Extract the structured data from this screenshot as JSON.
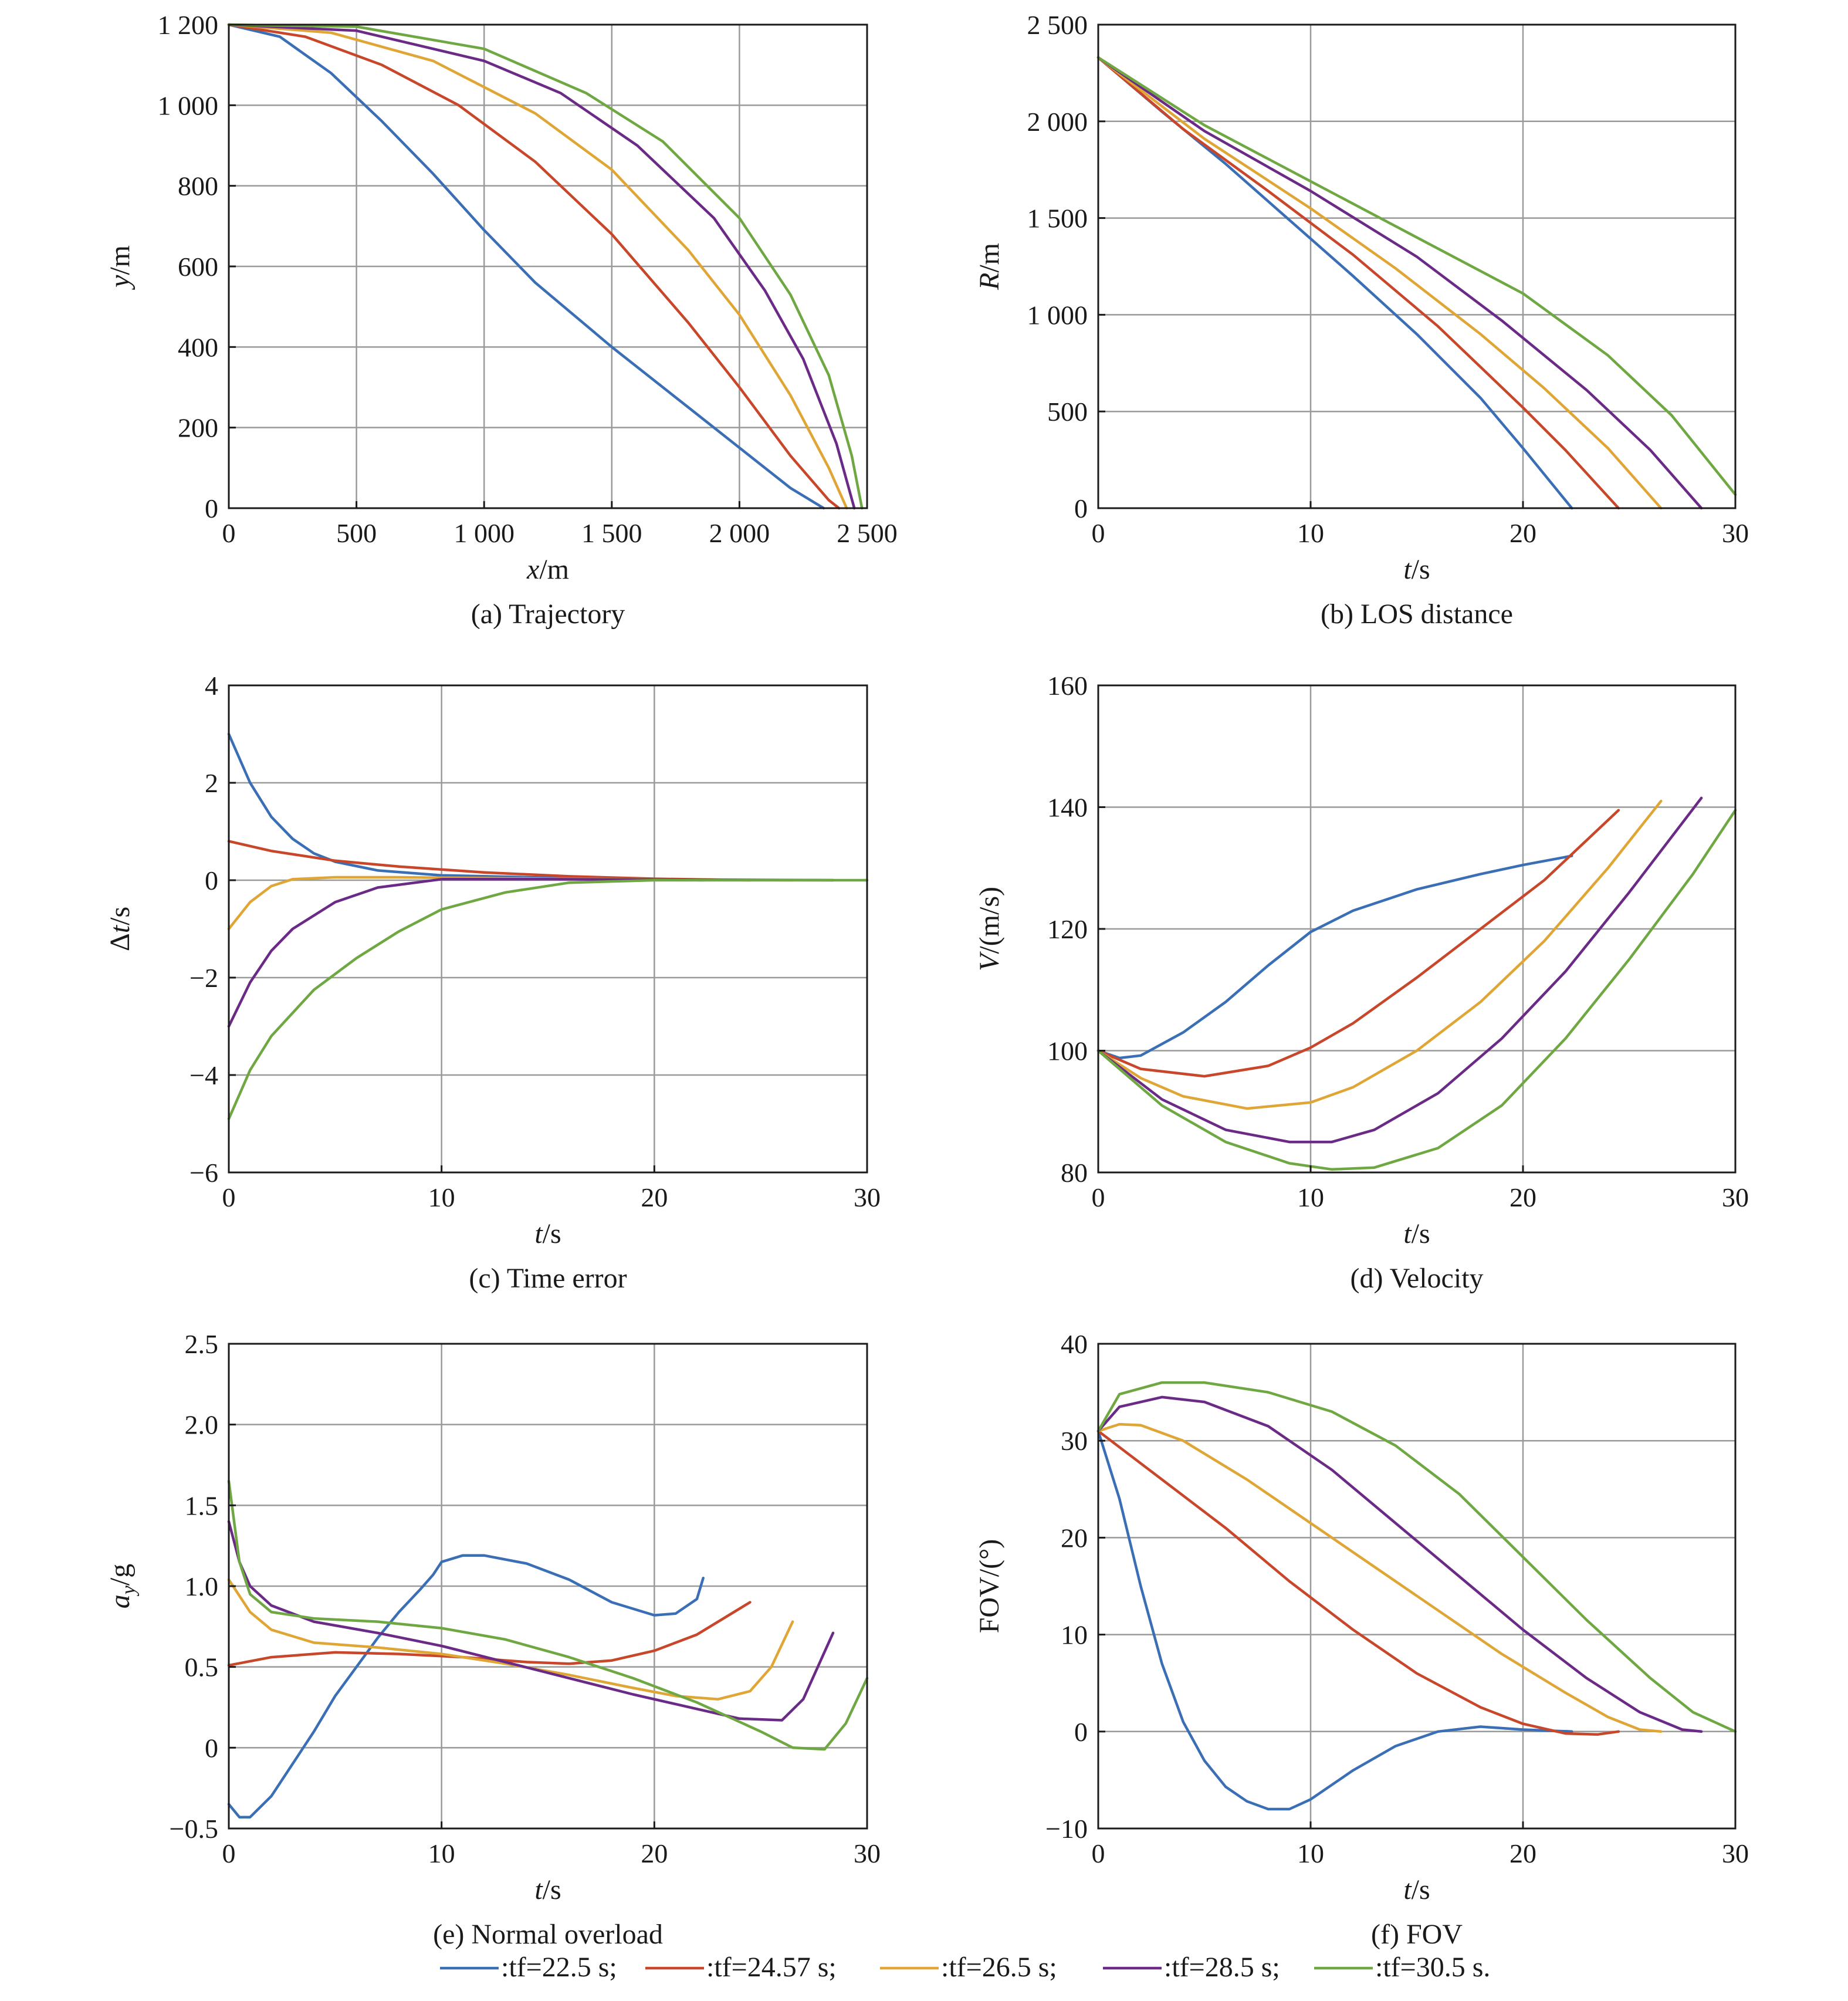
{
  "legend": [
    {
      "label": ":tf=22.5 s;",
      "color": "#3a6eb5"
    },
    {
      "label": ":tf=24.57 s;",
      "color": "#c8472b"
    },
    {
      "label": ":tf=26.5 s;",
      "color": "#dfa635"
    },
    {
      "label": ":tf=28.5 s;",
      "color": "#6a2a86"
    },
    {
      "label": ":tf=30.5 s.",
      "color": "#6fa843"
    }
  ],
  "chart_data": [
    {
      "id": "a",
      "type": "line",
      "caption": "(a) Trajectory",
      "xlabel": {
        "italic": "x",
        "rest": "/m"
      },
      "ylabel": {
        "italic": "y",
        "rest": "/m"
      },
      "xlim": [
        0,
        2500
      ],
      "ylim": [
        0,
        1200
      ],
      "xticks": [
        0,
        500,
        1000,
        1500,
        2000,
        2500
      ],
      "xtick_labels": [
        "0",
        "500",
        "1 000",
        "1 500",
        "2 000",
        "2 500"
      ],
      "yticks": [
        0,
        200,
        400,
        600,
        800,
        1000,
        1200
      ],
      "ytick_labels": [
        "0",
        "200",
        "400",
        "600",
        "800",
        "1 000",
        "1 200"
      ],
      "grid": true,
      "series": [
        {
          "x": [
            0,
            200,
            400,
            600,
            800,
            1000,
            1200,
            1500,
            1800,
            2000,
            2200,
            2330
          ],
          "y": [
            1200,
            1170,
            1080,
            960,
            830,
            690,
            560,
            400,
            250,
            150,
            50,
            0
          ]
        },
        {
          "x": [
            0,
            300,
            600,
            900,
            1200,
            1500,
            1800,
            2000,
            2200,
            2350,
            2390
          ],
          "y": [
            1200,
            1170,
            1100,
            1000,
            860,
            680,
            460,
            300,
            130,
            20,
            0
          ]
        },
        {
          "x": [
            0,
            400,
            800,
            1200,
            1500,
            1800,
            2000,
            2200,
            2350,
            2420
          ],
          "y": [
            1200,
            1180,
            1110,
            980,
            840,
            640,
            480,
            280,
            100,
            0
          ]
        },
        {
          "x": [
            0,
            500,
            1000,
            1300,
            1600,
            1900,
            2100,
            2250,
            2380,
            2450
          ],
          "y": [
            1200,
            1185,
            1110,
            1030,
            900,
            720,
            540,
            370,
            160,
            0
          ]
        },
        {
          "x": [
            0,
            500,
            1000,
            1400,
            1700,
            2000,
            2200,
            2350,
            2440,
            2480
          ],
          "y": [
            1200,
            1195,
            1140,
            1030,
            910,
            720,
            530,
            330,
            130,
            0
          ]
        }
      ]
    },
    {
      "id": "b",
      "type": "line",
      "caption": "(b) LOS distance",
      "xlabel": {
        "italic": "t",
        "rest": "/s"
      },
      "ylabel": {
        "italic": "R",
        "rest": "/m"
      },
      "xlim": [
        0,
        30
      ],
      "ylim": [
        0,
        2500
      ],
      "xticks": [
        0,
        10,
        20,
        30
      ],
      "xtick_labels": [
        "0",
        "10",
        "20",
        "30"
      ],
      "yticks": [
        0,
        500,
        1000,
        1500,
        2000,
        2500
      ],
      "ytick_labels": [
        "0",
        "500",
        "1 000",
        "1 500",
        "2 000",
        "2 500"
      ],
      "grid": true,
      "series": [
        {
          "x": [
            0,
            3,
            6,
            9,
            12,
            15,
            18,
            20,
            22.3
          ],
          "y": [
            2330,
            2050,
            1780,
            1490,
            1200,
            900,
            570,
            310,
            0
          ]
        },
        {
          "x": [
            0,
            4,
            8,
            12,
            16,
            20,
            22,
            24.5
          ],
          "y": [
            2330,
            1960,
            1640,
            1310,
            940,
            520,
            300,
            0
          ]
        },
        {
          "x": [
            0,
            5,
            10,
            14,
            18,
            21,
            24,
            26.5
          ],
          "y": [
            2330,
            1910,
            1550,
            1240,
            900,
            620,
            310,
            0
          ]
        },
        {
          "x": [
            0,
            5,
            10,
            15,
            19,
            23,
            26,
            28.4
          ],
          "y": [
            2330,
            1950,
            1640,
            1300,
            970,
            610,
            300,
            0
          ]
        },
        {
          "x": [
            0,
            5,
            10,
            15,
            20,
            24,
            27,
            30
          ],
          "y": [
            2330,
            1980,
            1690,
            1400,
            1110,
            790,
            480,
            70
          ]
        }
      ]
    },
    {
      "id": "c",
      "type": "line",
      "caption": "(c) Time error",
      "xlabel": {
        "italic": "t",
        "rest": "/s"
      },
      "ylabel": {
        "prefix": "Δ",
        "italic": "t",
        "rest": "/s"
      },
      "xlim": [
        0,
        30
      ],
      "ylim": [
        -6,
        4
      ],
      "xticks": [
        0,
        10,
        20,
        30
      ],
      "xtick_labels": [
        "0",
        "10",
        "20",
        "30"
      ],
      "yticks": [
        -6,
        -4,
        -2,
        0,
        2,
        4
      ],
      "ytick_labels": [
        "−6",
        "−4",
        "−2",
        "0",
        "2",
        "4"
      ],
      "grid": true,
      "series": [
        {
          "x": [
            0,
            1,
            2,
            3,
            4,
            5,
            7,
            10,
            15,
            20,
            22.3
          ],
          "y": [
            3.0,
            2.0,
            1.3,
            0.85,
            0.55,
            0.38,
            0.2,
            0.1,
            0.05,
            0.02,
            0.0
          ]
        },
        {
          "x": [
            0,
            2,
            5,
            8,
            12,
            16,
            20,
            24.5
          ],
          "y": [
            0.8,
            0.6,
            0.4,
            0.28,
            0.16,
            0.08,
            0.03,
            0.0
          ]
        },
        {
          "x": [
            0,
            1,
            2,
            3,
            5,
            8,
            15,
            26.5
          ],
          "y": [
            -1.0,
            -0.45,
            -0.12,
            0.02,
            0.06,
            0.06,
            0.03,
            0.0
          ]
        },
        {
          "x": [
            0,
            1,
            2,
            3,
            5,
            7,
            10,
            15,
            28.4
          ],
          "y": [
            -3.0,
            -2.1,
            -1.45,
            -1.0,
            -0.45,
            -0.15,
            0.02,
            0.02,
            0.0
          ]
        },
        {
          "x": [
            0,
            1,
            2,
            4,
            6,
            8,
            10,
            13,
            16,
            20,
            30
          ],
          "y": [
            -4.9,
            -3.9,
            -3.2,
            -2.25,
            -1.6,
            -1.05,
            -0.6,
            -0.25,
            -0.05,
            0.0,
            0.0
          ]
        }
      ]
    },
    {
      "id": "d",
      "type": "line",
      "caption": "(d) Velocity",
      "xlabel": {
        "italic": "t",
        "rest": "/s"
      },
      "ylabel": {
        "italic": "V",
        "rest": "/(m/s)"
      },
      "xlim": [
        0,
        30
      ],
      "ylim": [
        80,
        160
      ],
      "xticks": [
        0,
        10,
        20,
        30
      ],
      "xtick_labels": [
        "0",
        "10",
        "20",
        "30"
      ],
      "yticks": [
        80,
        100,
        120,
        140,
        160
      ],
      "ytick_labels": [
        "80",
        "100",
        "120",
        "140",
        "160"
      ],
      "grid": true,
      "series": [
        {
          "x": [
            0,
            1,
            2,
            4,
            6,
            8,
            10,
            12,
            15,
            18,
            20,
            22.3
          ],
          "y": [
            100,
            98.8,
            99.2,
            103,
            108,
            114,
            119.5,
            123,
            126.5,
            129,
            130.5,
            132
          ]
        },
        {
          "x": [
            0,
            2,
            5,
            8,
            10,
            12,
            15,
            18,
            21,
            24.5
          ],
          "y": [
            100,
            97,
            95.8,
            97.5,
            100.5,
            104.5,
            112,
            120,
            128,
            139.5
          ]
        },
        {
          "x": [
            0,
            2,
            4,
            7,
            10,
            12,
            15,
            18,
            21,
            24,
            26.5
          ],
          "y": [
            100,
            95.5,
            92.5,
            90.5,
            91.5,
            94,
            100,
            108,
            118,
            130,
            141
          ]
        },
        {
          "x": [
            0,
            3,
            6,
            9,
            11,
            13,
            16,
            19,
            22,
            25,
            28.4
          ],
          "y": [
            100,
            92,
            87,
            85,
            85,
            87,
            93,
            102,
            113,
            126,
            141.5
          ]
        },
        {
          "x": [
            0,
            3,
            6,
            9,
            11,
            13,
            16,
            19,
            22,
            25,
            28,
            30
          ],
          "y": [
            100,
            91,
            85,
            81.5,
            80.5,
            80.8,
            84,
            91,
            102,
            115,
            129,
            139.5
          ]
        }
      ]
    },
    {
      "id": "e",
      "type": "line",
      "caption": "(e) Normal overload",
      "xlabel": {
        "italic": "t",
        "rest": "/s"
      },
      "ylabel": {
        "italic": "a",
        "sub": "y",
        "rest": "/g"
      },
      "xlim": [
        0,
        30
      ],
      "ylim": [
        -0.5,
        2.5
      ],
      "xticks": [
        0,
        10,
        20,
        30
      ],
      "xtick_labels": [
        "0",
        "10",
        "20",
        "30"
      ],
      "yticks": [
        -0.5,
        0,
        0.5,
        1.0,
        1.5,
        2.0,
        2.5
      ],
      "ytick_labels": [
        "−0.5",
        "0",
        "0.5",
        "1.0",
        "1.5",
        "2.0",
        "2.5"
      ],
      "grid": true,
      "series": [
        {
          "x": [
            0,
            0.5,
            1,
            2,
            3,
            4,
            5,
            6,
            7,
            8,
            9,
            9.6,
            10,
            11,
            12,
            14,
            16,
            18,
            20,
            21,
            22,
            22.3
          ],
          "y": [
            -0.35,
            -0.43,
            -0.43,
            -0.3,
            -0.1,
            0.1,
            0.32,
            0.5,
            0.68,
            0.84,
            0.98,
            1.07,
            1.15,
            1.19,
            1.19,
            1.14,
            1.04,
            0.9,
            0.82,
            0.83,
            0.92,
            1.05
          ]
        },
        {
          "x": [
            0,
            2,
            5,
            8,
            11,
            14,
            16,
            18,
            20,
            22,
            24.5
          ],
          "y": [
            0.51,
            0.56,
            0.59,
            0.58,
            0.56,
            0.53,
            0.52,
            0.54,
            0.6,
            0.7,
            0.9
          ]
        },
        {
          "x": [
            0,
            1,
            2,
            4,
            7,
            10,
            13,
            16,
            19,
            21,
            23,
            24.5,
            25.5,
            26.5
          ],
          "y": [
            1.04,
            0.84,
            0.73,
            0.65,
            0.62,
            0.58,
            0.52,
            0.45,
            0.37,
            0.32,
            0.3,
            0.35,
            0.5,
            0.78
          ]
        },
        {
          "x": [
            0,
            0.5,
            1,
            2,
            4,
            7,
            10,
            13,
            16,
            19,
            22,
            24,
            26,
            27,
            28.4
          ],
          "y": [
            1.4,
            1.15,
            1.0,
            0.88,
            0.78,
            0.71,
            0.63,
            0.53,
            0.43,
            0.33,
            0.24,
            0.18,
            0.17,
            0.3,
            0.71
          ]
        },
        {
          "x": [
            0,
            0.5,
            1,
            2,
            4,
            7,
            10,
            13,
            16,
            19,
            22,
            25,
            26.5,
            28,
            29,
            30
          ],
          "y": [
            1.65,
            1.15,
            0.95,
            0.84,
            0.8,
            0.78,
            0.74,
            0.67,
            0.56,
            0.43,
            0.28,
            0.1,
            0.0,
            -0.01,
            0.15,
            0.43
          ]
        }
      ]
    },
    {
      "id": "f",
      "type": "line",
      "caption": "(f) FOV",
      "xlabel": {
        "italic": "t",
        "rest": "/s"
      },
      "ylabel": {
        "italic": "",
        "rest": "FOV/(°)"
      },
      "xlim": [
        0,
        30
      ],
      "ylim": [
        -10,
        40
      ],
      "xticks": [
        0,
        10,
        20,
        30
      ],
      "xtick_labels": [
        "0",
        "10",
        "20",
        "30"
      ],
      "yticks": [
        -10,
        0,
        10,
        20,
        30,
        40
      ],
      "ytick_labels": [
        "−10",
        "0",
        "10",
        "20",
        "30",
        "40"
      ],
      "grid": true,
      "series": [
        {
          "x": [
            0,
            1,
            2,
            3,
            4,
            5,
            6,
            7,
            8,
            9,
            10,
            12,
            14,
            16,
            18,
            20,
            22.3
          ],
          "y": [
            31,
            24,
            15,
            7,
            1,
            -3,
            -5.7,
            -7.2,
            -8.0,
            -8.0,
            -7.0,
            -4.0,
            -1.5,
            0.0,
            0.5,
            0.2,
            0.0
          ]
        },
        {
          "x": [
            0,
            3,
            6,
            9,
            12,
            15,
            18,
            20,
            22,
            23.5,
            24.5
          ],
          "y": [
            31,
            26,
            21,
            15.5,
            10.5,
            6,
            2.5,
            0.8,
            -0.2,
            -0.3,
            0.0
          ]
        },
        {
          "x": [
            0,
            1,
            2,
            4,
            7,
            10,
            13,
            16,
            19,
            22,
            24,
            25.5,
            26.5
          ],
          "y": [
            31,
            31.7,
            31.6,
            30,
            26,
            21.5,
            17,
            12.5,
            8,
            4,
            1.5,
            0.2,
            0.0
          ]
        },
        {
          "x": [
            0,
            1,
            3,
            5,
            8,
            11,
            14,
            17,
            20,
            23,
            25.5,
            27.5,
            28.4
          ],
          "y": [
            31,
            33.5,
            34.5,
            34,
            31.5,
            27,
            21.5,
            16,
            10.5,
            5.5,
            2,
            0.2,
            0.0
          ]
        },
        {
          "x": [
            0,
            1,
            3,
            5,
            8,
            11,
            14,
            17,
            20,
            23,
            26,
            28,
            30
          ],
          "y": [
            31,
            34.8,
            36,
            36,
            35,
            33,
            29.5,
            24.5,
            18,
            11.5,
            5.5,
            2,
            0.0
          ]
        }
      ]
    }
  ]
}
